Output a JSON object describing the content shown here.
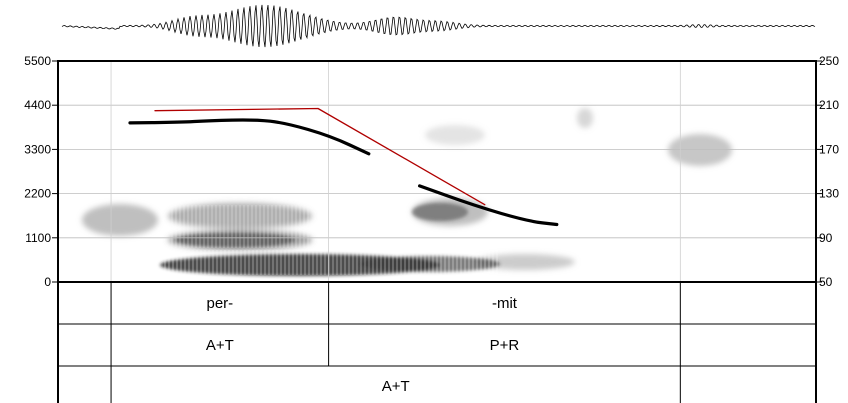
{
  "chart_data": {
    "type": "line",
    "title": "",
    "xlabel": "",
    "ylabel": "",
    "left_axis": {
      "ylim": [
        0,
        5500
      ],
      "ticks": [
        0,
        1100,
        2200,
        3300,
        4400,
        5500
      ],
      "tick_labels": [
        "0",
        "1100",
        "2200",
        "3300",
        "4400",
        "5500"
      ]
    },
    "right_axis": {
      "ylim": [
        50,
        250
      ],
      "ticks": [
        50,
        90,
        130,
        170,
        210,
        250
      ],
      "tick_labels": [
        "50",
        "90",
        "130",
        "170",
        "210",
        "250"
      ]
    },
    "x_range": [
      0,
      1
    ],
    "grid": true,
    "series": [
      {
        "color": "#000000",
        "axis": "right",
        "segments": [
          [
            [
              0.095,
              194
            ],
            [
              0.16,
              194.5
            ],
            [
              0.2,
              196
            ],
            [
              0.26,
              197
            ],
            [
              0.3,
              194
            ],
            [
              0.36,
              182
            ],
            [
              0.41,
              166
            ]
          ],
          [
            [
              0.477,
              137
            ],
            [
              0.55,
              119
            ],
            [
              0.62,
              105
            ],
            [
              0.658,
              102
            ]
          ]
        ]
      },
      {
        "color": "#b00000",
        "axis": "right",
        "segments": [
          [
            [
              0.128,
              205
            ],
            [
              0.343,
              207
            ],
            [
              0.563,
              120
            ]
          ]
        ]
      }
    ],
    "tiers": [
      {
        "intervals": [
          {
            "label": "",
            "start": 0,
            "end": 0.07
          },
          {
            "label": "per-",
            "start": 0.07,
            "end": 0.357
          },
          {
            "label": "-mit",
            "start": 0.357,
            "end": 0.821
          },
          {
            "label": "",
            "start": 0.821,
            "end": 1
          }
        ]
      },
      {
        "intervals": [
          {
            "label": "",
            "start": 0,
            "end": 0.07
          },
          {
            "label": "A+T",
            "start": 0.07,
            "end": 0.357
          },
          {
            "label": "P+R",
            "start": 0.357,
            "end": 0.821
          },
          {
            "label": "",
            "start": 0.821,
            "end": 1
          }
        ]
      },
      {
        "intervals": [
          {
            "label": "",
            "start": 0,
            "end": 0.07
          },
          {
            "label": "A+T",
            "start": 0.07,
            "end": 0.821
          },
          {
            "label": "",
            "start": 0.821,
            "end": 1
          }
        ]
      }
    ]
  }
}
